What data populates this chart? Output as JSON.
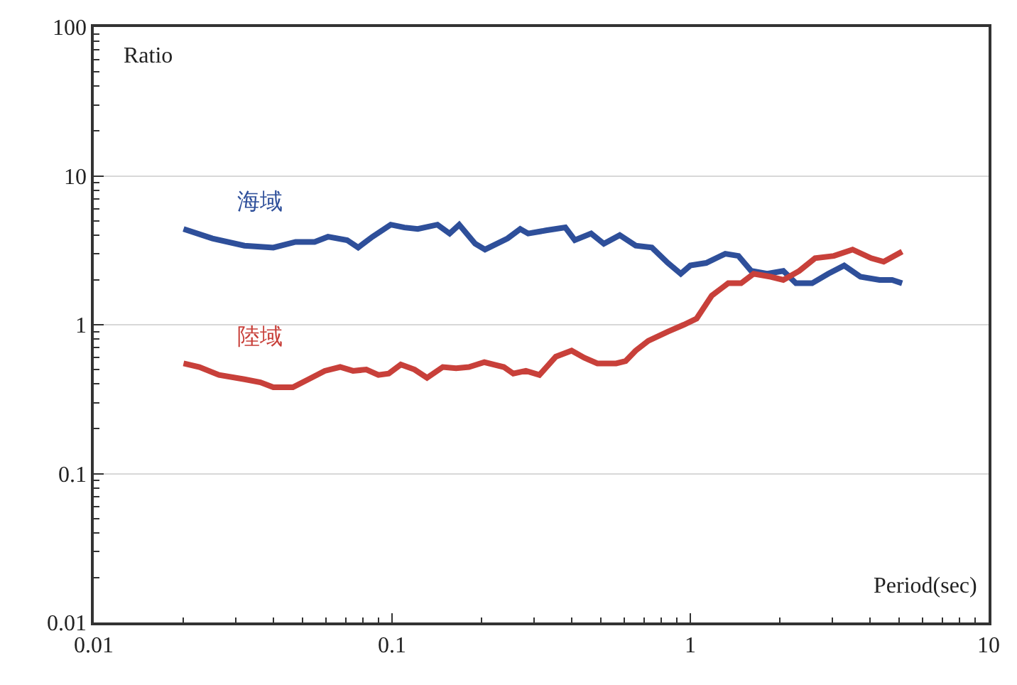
{
  "chart_data": {
    "type": "line",
    "xlabel": "Period(sec)",
    "ylabel": "Ratio",
    "log": "xy",
    "grid": "y",
    "xlim": [
      0.01,
      10
    ],
    "xticks": [
      0.01,
      0.1,
      1,
      10
    ],
    "ylim": [
      0.01,
      100
    ],
    "yticks": [
      0.01,
      0.1,
      1,
      10,
      100
    ],
    "series": [
      {
        "name": "海域",
        "color": "#2e4f9a",
        "x": [
          0.02,
          0.025,
          0.032,
          0.04,
          0.0475,
          0.055,
          0.061,
          0.0707,
          0.077,
          0.086,
          0.099,
          0.11,
          0.122,
          0.142,
          0.156,
          0.168,
          0.19,
          0.205,
          0.244,
          0.269,
          0.286,
          0.328,
          0.381,
          0.41,
          0.465,
          0.513,
          0.58,
          0.656,
          0.743,
          0.841,
          0.929,
          1.0,
          1.13,
          1.31,
          1.45,
          1.6,
          1.81,
          2.05,
          2.26,
          2.56,
          2.9,
          3.28,
          3.72,
          4.31,
          4.75,
          5.13
        ],
        "values": [
          4.4,
          3.8,
          3.4,
          3.3,
          3.6,
          3.6,
          3.9,
          3.7,
          3.3,
          3.9,
          4.7,
          4.5,
          4.4,
          4.7,
          4.1,
          4.7,
          3.5,
          3.2,
          3.8,
          4.4,
          4.1,
          4.3,
          4.5,
          3.7,
          4.1,
          3.5,
          4.0,
          3.4,
          3.3,
          2.6,
          2.2,
          2.5,
          2.6,
          3.0,
          2.9,
          2.3,
          2.2,
          2.3,
          1.9,
          1.9,
          2.2,
          2.5,
          2.1,
          2.0,
          2.0,
          1.9
        ]
      },
      {
        "name": "陸域",
        "color": "#c8403a",
        "x": [
          0.02,
          0.0226,
          0.0263,
          0.032,
          0.0362,
          0.04,
          0.0465,
          0.0525,
          0.0595,
          0.067,
          0.074,
          0.082,
          0.09,
          0.0975,
          0.107,
          0.119,
          0.131,
          0.148,
          0.164,
          0.181,
          0.204,
          0.237,
          0.255,
          0.281,
          0.312,
          0.354,
          0.4,
          0.441,
          0.488,
          0.564,
          0.607,
          0.656,
          0.723,
          0.842,
          0.951,
          1.05,
          1.18,
          1.34,
          1.48,
          1.63,
          1.86,
          2.05,
          2.32,
          2.62,
          3.03,
          3.5,
          4.04,
          4.45,
          5.13
        ],
        "values": [
          0.55,
          0.52,
          0.46,
          0.43,
          0.41,
          0.38,
          0.38,
          0.43,
          0.49,
          0.52,
          0.49,
          0.5,
          0.46,
          0.47,
          0.54,
          0.5,
          0.44,
          0.52,
          0.51,
          0.52,
          0.56,
          0.52,
          0.47,
          0.49,
          0.46,
          0.61,
          0.67,
          0.6,
          0.55,
          0.55,
          0.57,
          0.67,
          0.78,
          0.9,
          1.0,
          1.1,
          1.57,
          1.9,
          1.9,
          2.2,
          2.1,
          2.0,
          2.3,
          2.8,
          2.9,
          3.2,
          2.8,
          2.65,
          3.1
        ]
      }
    ]
  }
}
